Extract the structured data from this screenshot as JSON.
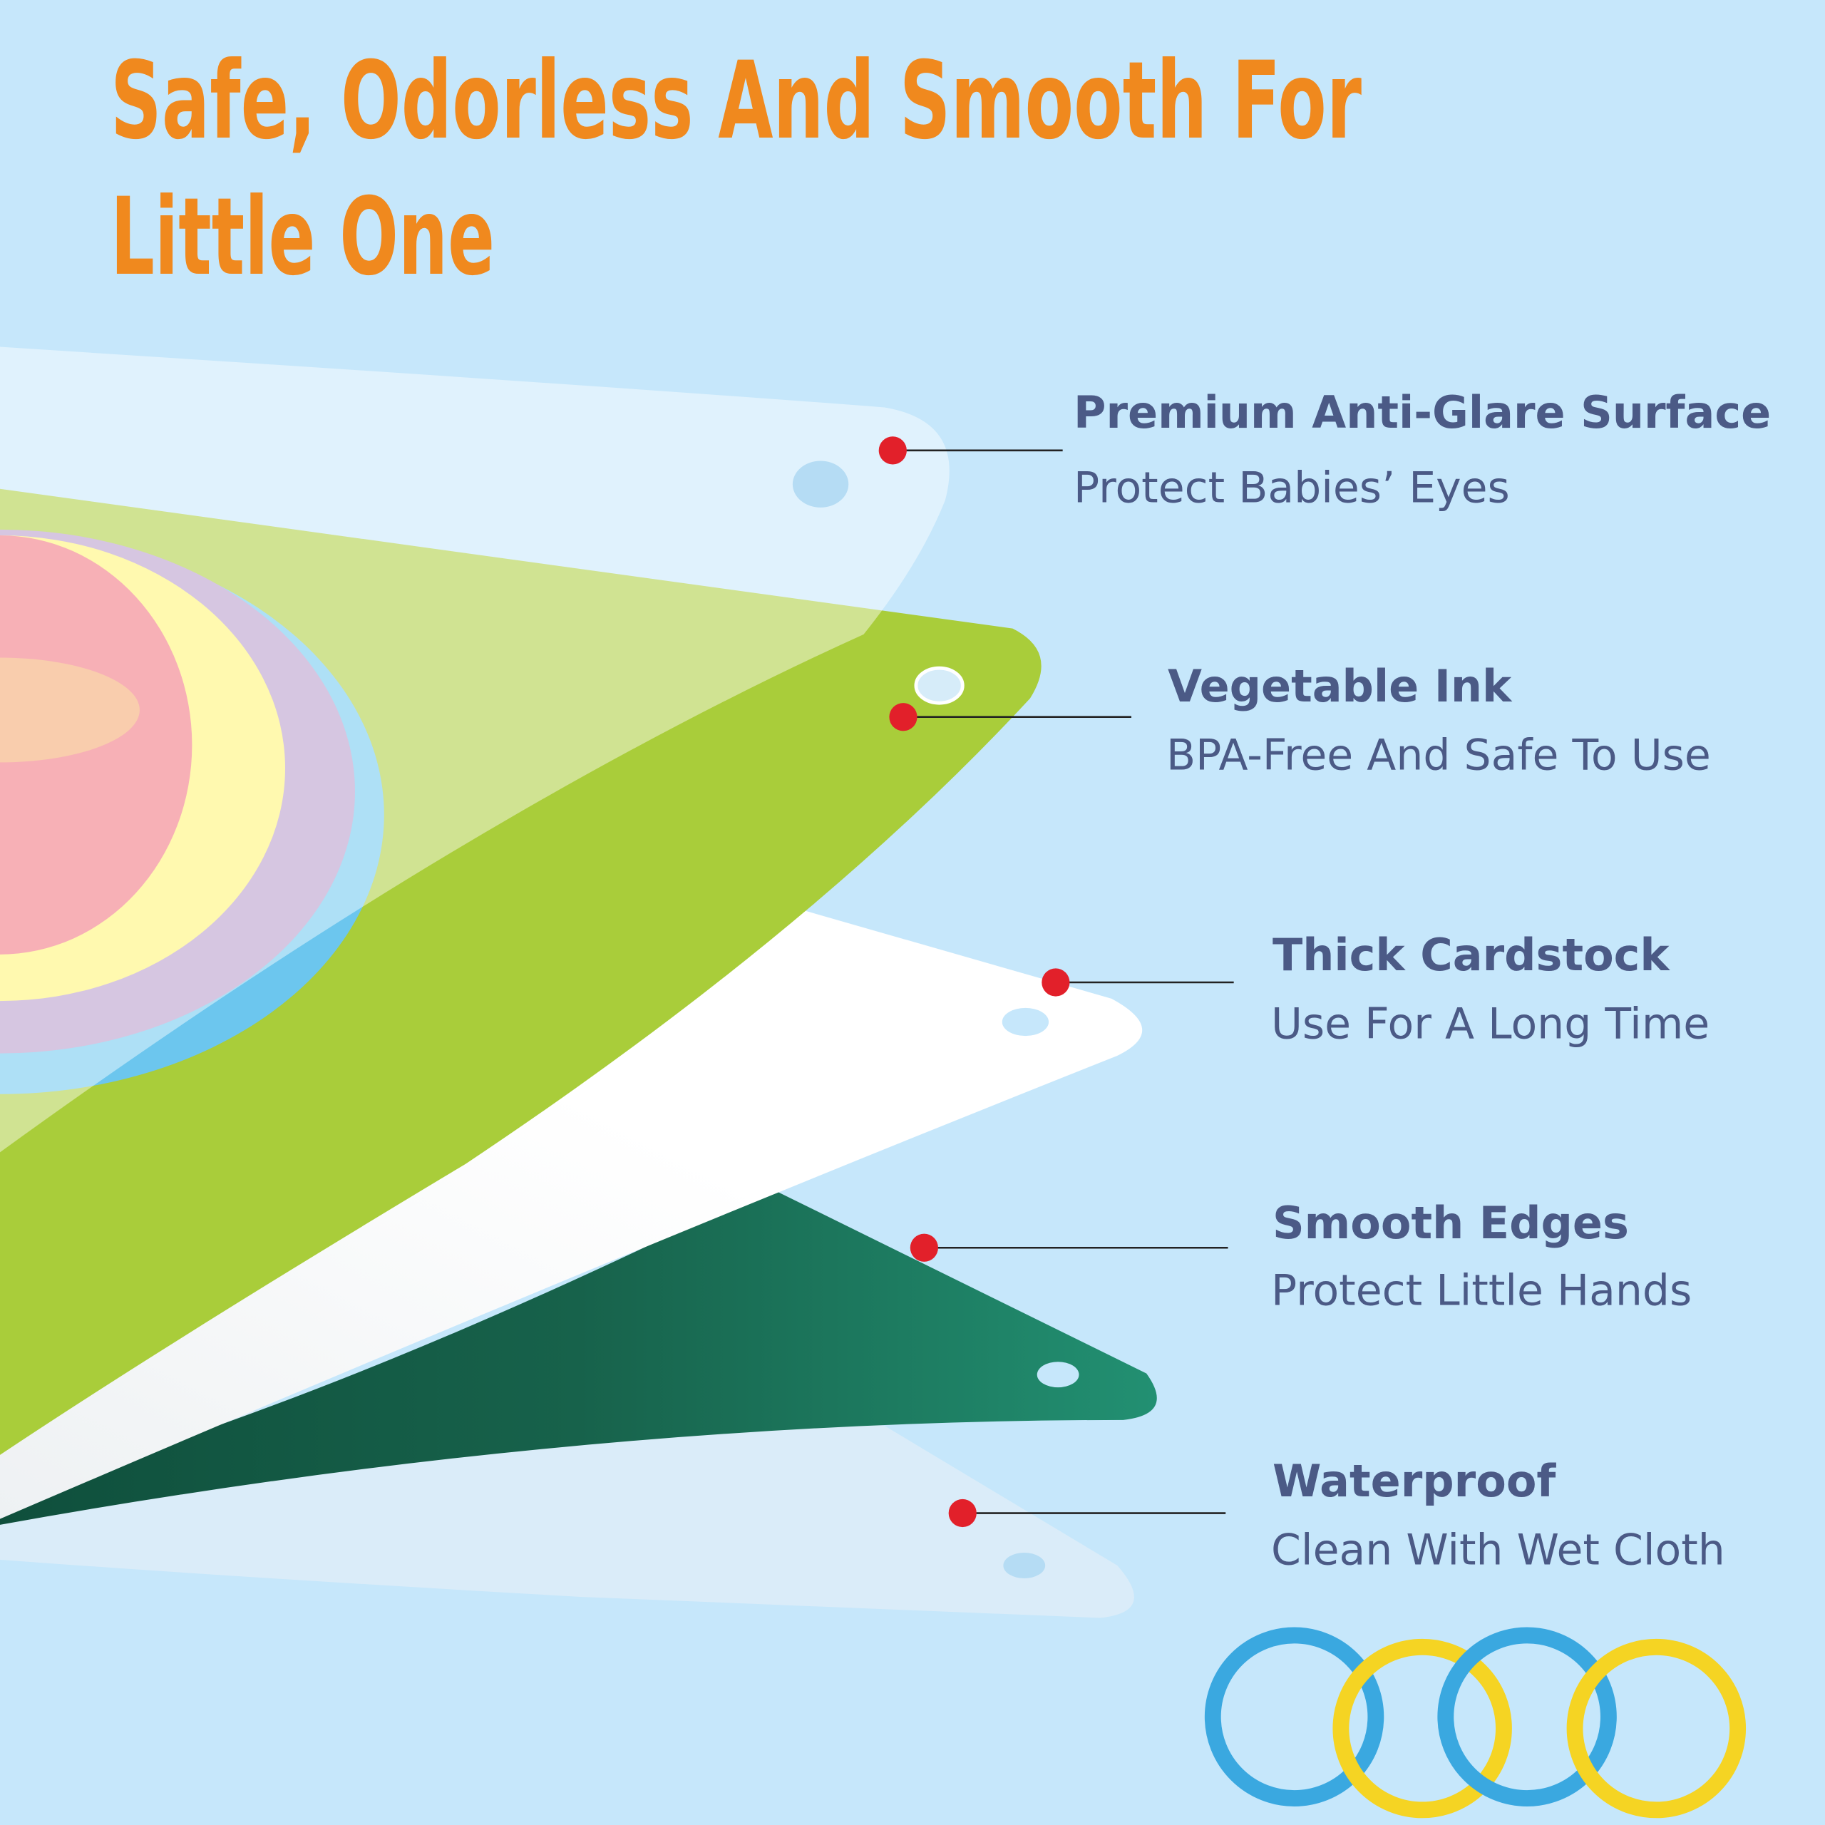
{
  "title": {
    "lines": [
      "Safe, Odorless And Smooth For",
      "Little One"
    ]
  },
  "features": [
    {
      "heading": "Premium Anti-Glare Surface",
      "subtitle": "Protect Babies’ Eyes"
    },
    {
      "heading": "Vegetable Ink",
      "subtitle": "BPA-Free And Safe To Use"
    },
    {
      "heading": "Thick Cardstock",
      "subtitle": "Use For A Long Time"
    },
    {
      "heading": "Smooth Edges",
      "subtitle": "Protect Little Hands"
    },
    {
      "heading": "Waterproof",
      "subtitle": "Clean With Wet Cloth"
    }
  ]
}
